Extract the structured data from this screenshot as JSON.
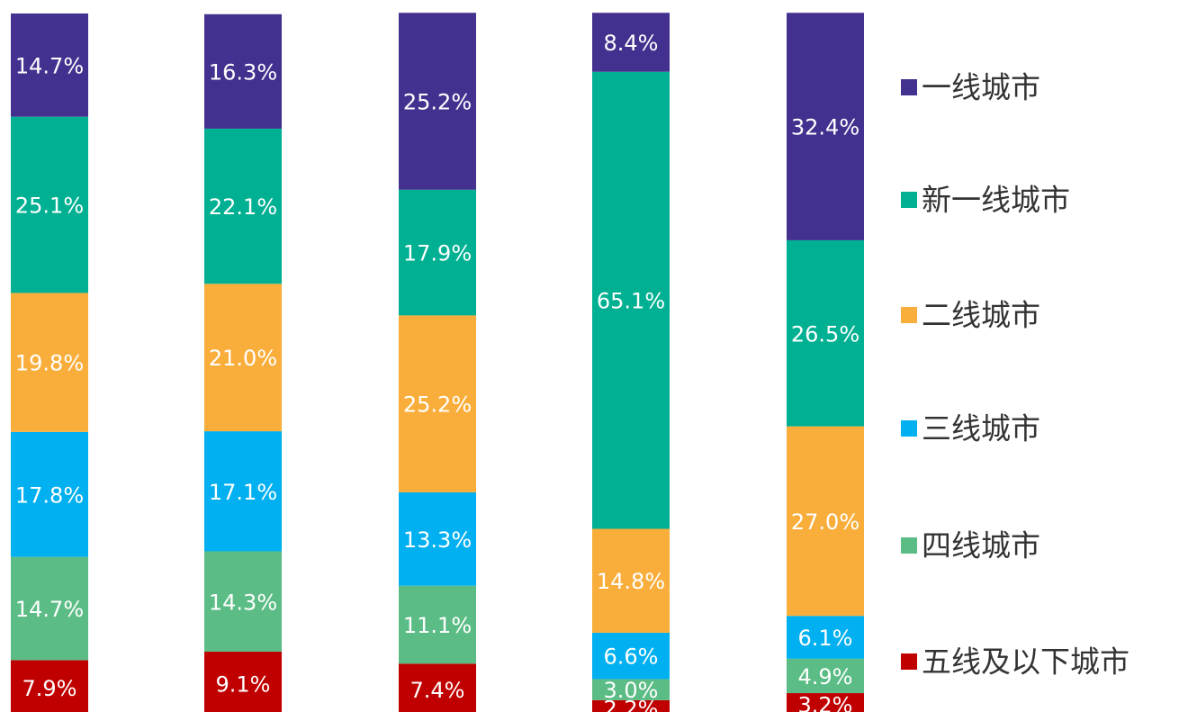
{
  "chart_data": {
    "type": "stacked_bar",
    "categories": [
      null,
      null,
      null,
      null,
      null
    ],
    "ylim": [
      0,
      100
    ],
    "series": [
      {
        "name": "一线城市",
        "color": "#44318f",
        "values": [
          14.7,
          16.3,
          25.2,
          8.4,
          32.4
        ],
        "value_labels": [
          "14.7%",
          "16.3%",
          "25.2%",
          "8.4%",
          "32.4%"
        ]
      },
      {
        "name": "新一线城市",
        "color": "#00b092",
        "values": [
          25.1,
          22.1,
          17.9,
          65.1,
          26.5
        ],
        "value_labels": [
          "25.1%",
          "22.1%",
          "17.9%",
          "65.1%",
          "26.5%"
        ]
      },
      {
        "name": "二线城市",
        "color": "#f9ae3b",
        "values": [
          19.8,
          21.0,
          25.2,
          14.8,
          27.0
        ],
        "value_labels": [
          "19.8%",
          "21.0%",
          "25.2%",
          "14.8%",
          "27.0%"
        ]
      },
      {
        "name": "三线城市",
        "color": "#00b0f0",
        "values": [
          17.8,
          17.1,
          13.3,
          6.6,
          6.1
        ],
        "value_labels": [
          "17.8%",
          "17.1%",
          "13.3%",
          "6.6%",
          "6.1%"
        ]
      },
      {
        "name": "四线城市",
        "color": "#5bbd85",
        "values": [
          14.7,
          14.3,
          11.1,
          3.0,
          4.9
        ],
        "value_labels": [
          "14.7%",
          "14.3%",
          "11.1%",
          "3.0%",
          "4.9%"
        ]
      },
      {
        "name": "五线及以下城市",
        "color": "#c00000",
        "values": [
          7.9,
          9.1,
          7.4,
          2.2,
          3.2
        ],
        "value_labels": [
          "7.9%",
          "9.1%",
          "7.4%",
          "2.2%",
          "3.2%"
        ]
      }
    ]
  }
}
